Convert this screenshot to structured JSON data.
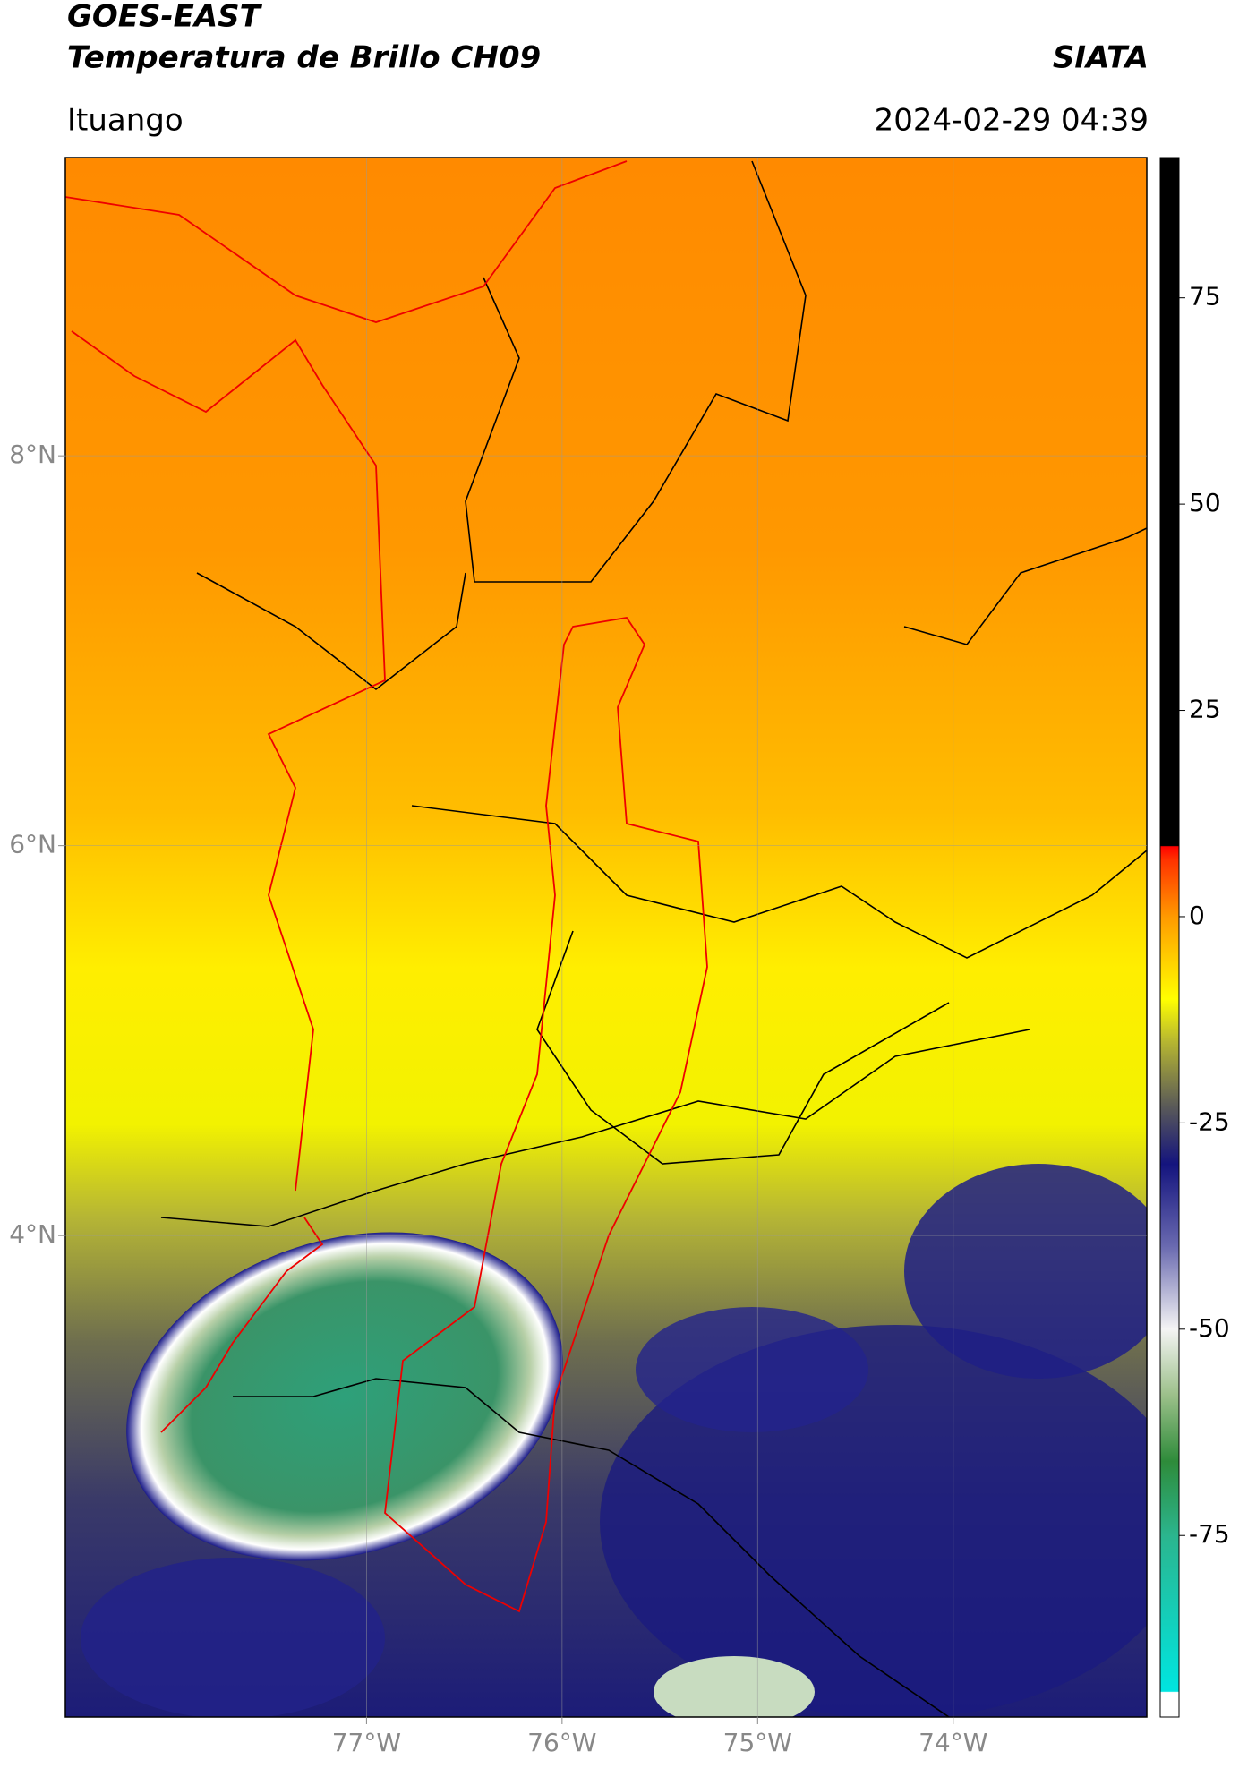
{
  "header": {
    "title": "GOES-EAST",
    "subtitle": "Temperatura de Brillo CH09",
    "agency": "SIATA",
    "location": "Ituango",
    "timestamp": "2024-02-29 04:39"
  },
  "map": {
    "xlim": [
      -78.54,
      -73.01
    ],
    "ylim": [
      1.53,
      9.53
    ],
    "xticks": [
      {
        "value": -77,
        "label": "77°W"
      },
      {
        "value": -76,
        "label": "76°W"
      },
      {
        "value": -75,
        "label": "75°W"
      },
      {
        "value": -74,
        "label": "74°W"
      }
    ],
    "yticks": [
      {
        "value": 8,
        "label": "8°N"
      },
      {
        "value": 6,
        "label": "6°N"
      },
      {
        "value": 4,
        "label": "4°N"
      }
    ],
    "grid": true
  },
  "colorbar": {
    "lim": [
      -97,
      92
    ],
    "ticks": [
      -75,
      -50,
      -25,
      0,
      25,
      50,
      75
    ],
    "stops": [
      {
        "value": -97,
        "color": "#ffffff"
      },
      {
        "value": -94,
        "color": "#ffffff"
      },
      {
        "value": -93.9,
        "color": "#00e5e0"
      },
      {
        "value": -75,
        "color": "#2bb58e"
      },
      {
        "value": -66,
        "color": "#2e8b3a"
      },
      {
        "value": -58,
        "color": "#9cc08a"
      },
      {
        "value": -50,
        "color": "#f4f4f4"
      },
      {
        "value": -40,
        "color": "#6a6ab0"
      },
      {
        "value": -30,
        "color": "#14147e"
      },
      {
        "value": -23,
        "color": "#5a5a58"
      },
      {
        "value": -15,
        "color": "#b8b830"
      },
      {
        "value": -10,
        "color": "#ffff00"
      },
      {
        "value": 0,
        "color": "#ff9a00"
      },
      {
        "value": 7,
        "color": "#ff3000"
      },
      {
        "value": 8.5,
        "color": "#ff0000"
      },
      {
        "value": 8.6,
        "color": "#000000"
      },
      {
        "value": 92,
        "color": "#000000"
      }
    ]
  }
}
